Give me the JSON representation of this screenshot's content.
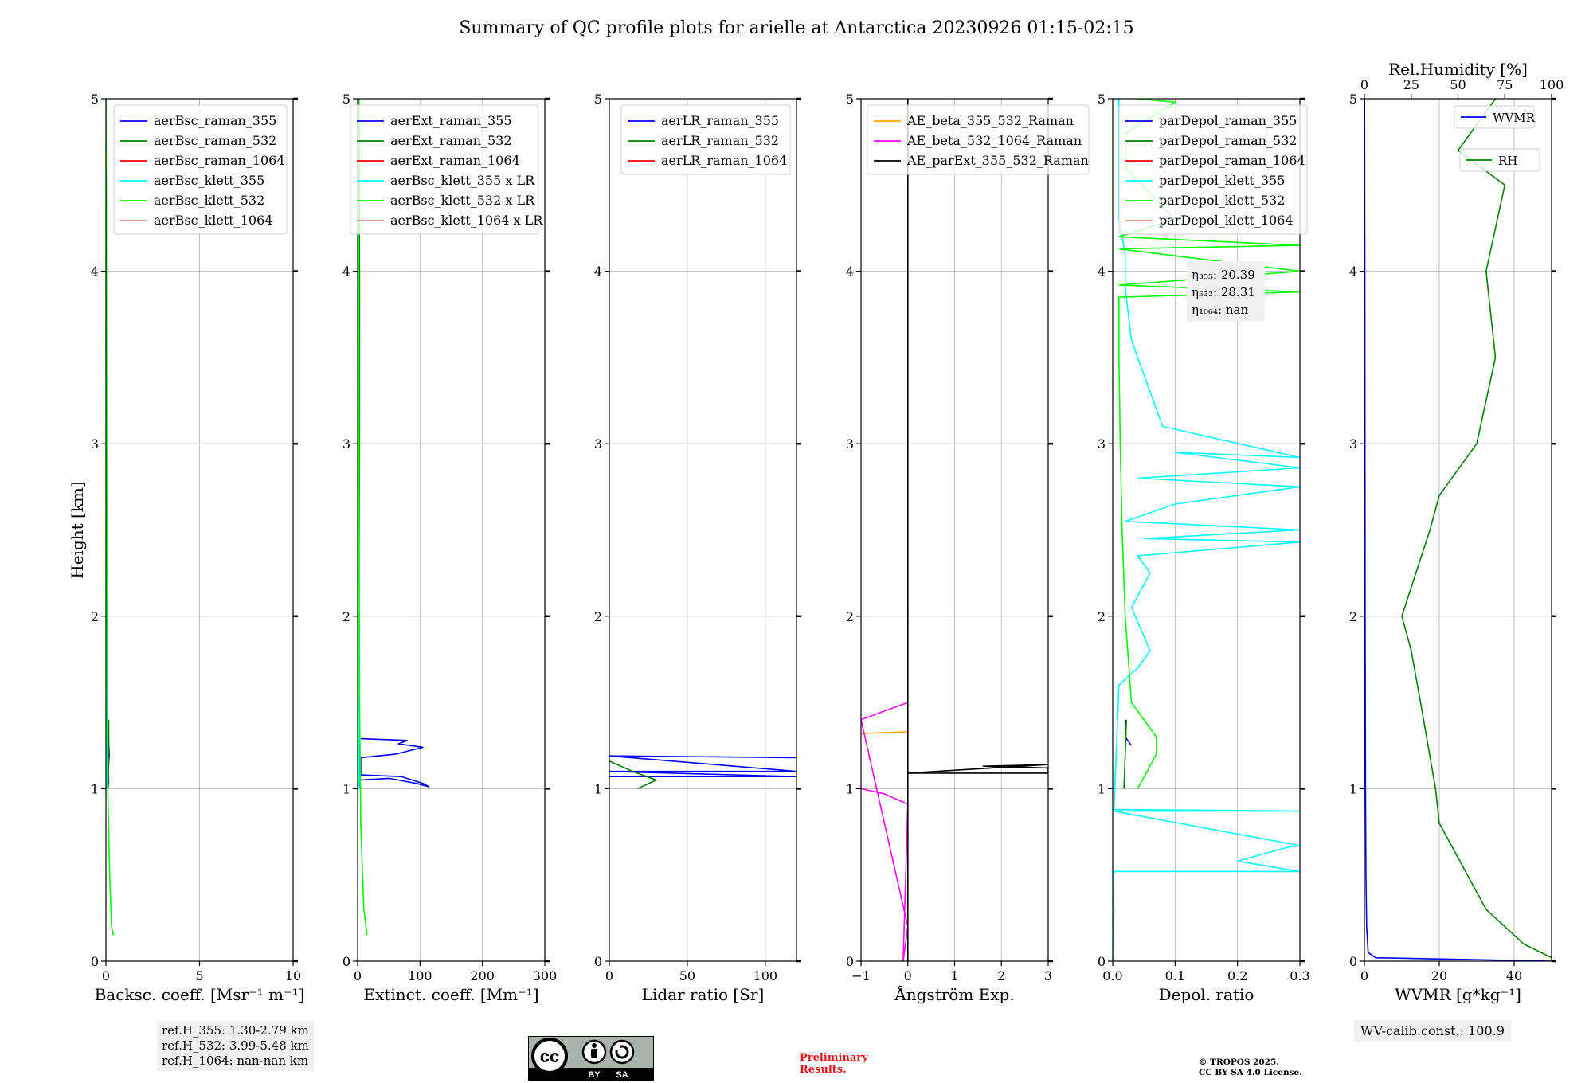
{
  "title": "Summary of QC profile plots for arielle at Antarctica 20230926 01:15-02:15",
  "notes": {
    "ref_heights": [
      "ref.H_355: 1.30-2.79 km",
      "ref.H_532: 3.99-5.48 km",
      "ref.H_1064: nan-nan km"
    ],
    "wv_calib": "WV-calib.const.: 100.9",
    "preliminary": [
      "Preliminary",
      "Results."
    ],
    "copyright": [
      "© TROPOS 2025.",
      "CC BY SA 4.0 License."
    ],
    "license_badge": {
      "symbol": "cc",
      "labels": [
        "BY",
        "SA"
      ]
    }
  },
  "colors": {
    "blue": "#0000ff",
    "green": "#008000",
    "red": "#ff0000",
    "cyan": "#00ffff",
    "lime": "#00ff00",
    "lightcoral": "#f08080",
    "orange": "#ffa500",
    "magenta": "#ff00ff",
    "black": "#000000",
    "prelim_red": "#e31a1c"
  },
  "chart_data": [
    {
      "type": "line",
      "xlabel": "Backsc. coeff. [Msr⁻¹ m⁻¹]",
      "ylabel": "Height [km]",
      "xlim": [
        0,
        10
      ],
      "ylim": [
        0,
        5
      ],
      "xticks": [
        0,
        5,
        10
      ],
      "yticks": [
        0,
        1,
        2,
        3,
        4,
        5
      ],
      "grid": true,
      "legend_position": "upper-right",
      "series": [
        {
          "name": "aerBsc_raman_355",
          "color": "#0000ff",
          "points": [
            [
              0.1,
              1.0
            ],
            [
              0.15,
              1.04
            ],
            [
              0.12,
              1.1
            ],
            [
              0.18,
              1.2
            ],
            [
              0.14,
              1.28
            ],
            [
              0.1,
              1.35
            ]
          ]
        },
        {
          "name": "aerBsc_raman_532",
          "color": "#008000",
          "points": [
            [
              0.12,
              1.0
            ],
            [
              0.15,
              1.2
            ],
            [
              0.15,
              1.4
            ]
          ]
        },
        {
          "name": "aerBsc_raman_1064",
          "color": "#ff0000",
          "points": []
        },
        {
          "name": "aerBsc_klett_355",
          "color": "#00ffff",
          "points": [
            [
              0.05,
              1.0
            ],
            [
              0.05,
              2.0
            ],
            [
              0.03,
              3.0
            ],
            [
              0.02,
              4.0
            ],
            [
              0.0,
              5.0
            ]
          ]
        },
        {
          "name": "aerBsc_klett_532",
          "color": "#00ff00",
          "points": [
            [
              0.4,
              0.15
            ],
            [
              0.3,
              0.2
            ],
            [
              0.2,
              0.5
            ],
            [
              0.1,
              1.0
            ],
            [
              0.08,
              1.5
            ],
            [
              0.05,
              2.5
            ],
            [
              0.04,
              3.5
            ],
            [
              0.02,
              4.5
            ],
            [
              0.0,
              5.0
            ]
          ]
        },
        {
          "name": "aerBsc_klett_1064",
          "color": "#f08080",
          "points": []
        }
      ]
    },
    {
      "type": "line",
      "xlabel": "Extinct. coeff. [Mm⁻¹]",
      "xlim": [
        0,
        300
      ],
      "ylim": [
        0,
        5
      ],
      "xticks": [
        0,
        100,
        200,
        300
      ],
      "yticks": [
        0,
        1,
        2,
        3,
        4,
        5
      ],
      "grid": true,
      "legend_position": "upper-right",
      "series": [
        {
          "name": "aerExt_raman_355",
          "color": "#0000ff",
          "points": [
            [
              5,
              1.0
            ],
            [
              2,
              1.05
            ],
            [
              50,
              1.06
            ],
            [
              95,
              1.03
            ],
            [
              115,
              1.01
            ],
            [
              105,
              1.03
            ],
            [
              70,
              1.07
            ],
            [
              5,
              1.08
            ],
            [
              5,
              1.18
            ],
            [
              60,
              1.2
            ],
            [
              105,
              1.24
            ],
            [
              65,
              1.26
            ],
            [
              80,
              1.28
            ],
            [
              5,
              1.29
            ]
          ]
        },
        {
          "name": "aerExt_raman_532",
          "color": "#008000",
          "points": [
            [
              2,
              1.0
            ],
            [
              2,
              2.0
            ],
            [
              3,
              3.0
            ],
            [
              3,
              4.0
            ],
            [
              2,
              5.0
            ]
          ]
        },
        {
          "name": "aerExt_raman_1064",
          "color": "#ff0000",
          "points": []
        },
        {
          "name": "aerBsc_klett_355 x LR",
          "color": "#00ffff",
          "points": [
            [
              2,
              1.0
            ],
            [
              1,
              2.0
            ],
            [
              1,
              3.0
            ],
            [
              0,
              5.0
            ]
          ]
        },
        {
          "name": "aerBsc_klett_532 x LR",
          "color": "#00ff00",
          "points": [
            [
              15,
              0.15
            ],
            [
              10,
              0.3
            ],
            [
              5,
              0.8
            ],
            [
              3,
              1.5
            ],
            [
              2,
              3.0
            ],
            [
              1,
              5.0
            ]
          ]
        },
        {
          "name": "aerBsc_klett_1064 x LR",
          "color": "#f08080",
          "points": []
        }
      ]
    },
    {
      "type": "line",
      "xlabel": "Lidar ratio [Sr]",
      "xlim": [
        0,
        120
      ],
      "ylim": [
        0,
        5
      ],
      "xticks": [
        0,
        50,
        100
      ],
      "yticks": [
        0,
        1,
        2,
        3,
        4,
        5
      ],
      "grid": true,
      "legend_position": "upper-right",
      "series": [
        {
          "name": "aerLR_raman_355",
          "color": "#0000ff",
          "points": [
            [
              0,
              1.07
            ],
            [
              120,
              1.07
            ],
            [
              0,
              1.1
            ],
            [
              120,
              1.1
            ],
            [
              0,
              1.19
            ],
            [
              120,
              1.18
            ]
          ]
        },
        {
          "name": "aerLR_raman_532",
          "color": "#008000",
          "points": [
            [
              18,
              1.0
            ],
            [
              30,
              1.05
            ],
            [
              15,
              1.1
            ],
            [
              5,
              1.14
            ],
            [
              0,
              1.16
            ]
          ]
        },
        {
          "name": "aerLR_raman_1064",
          "color": "#ff0000",
          "points": []
        }
      ]
    },
    {
      "type": "line",
      "xlabel": "Ångström Exp.",
      "xlim": [
        -1,
        3
      ],
      "ylim": [
        0,
        5
      ],
      "xticks": [
        -1,
        0,
        1,
        2,
        3
      ],
      "yticks": [
        0,
        1,
        2,
        3,
        4,
        5
      ],
      "grid": true,
      "legend_position": "upper-left",
      "series": [
        {
          "name": "AE_beta_355_532_Raman",
          "color": "#ffa500",
          "points": [
            [
              -1,
              1.32
            ],
            [
              0,
              1.33
            ]
          ]
        },
        {
          "name": "AE_beta_532_1064_Raman",
          "color": "#ff00ff",
          "points": [
            [
              -1,
              1.0
            ],
            [
              -0.5,
              0.97
            ],
            [
              0,
              0.91
            ],
            [
              -0.1,
              0.0
            ],
            [
              0,
              0.2
            ],
            [
              -1,
              1.4
            ],
            [
              -0.5,
              1.45
            ],
            [
              0,
              1.5
            ]
          ]
        },
        {
          "name": "AE_parExt_355_532_Raman",
          "color": "#000000",
          "points": [
            [
              0,
              1.32
            ],
            [
              0,
              5.0
            ],
            [
              0,
              1.09
            ],
            [
              3,
              1.09
            ],
            [
              3,
              1.12
            ],
            [
              1.6,
              1.13
            ],
            [
              3,
              1.14
            ],
            [
              0,
              1.09
            ],
            [
              0,
              0.0
            ]
          ]
        }
      ]
    },
    {
      "type": "line",
      "xlabel": "Depol. ratio",
      "xlim": [
        0,
        0.3
      ],
      "ylim": [
        0,
        5
      ],
      "xticks": [
        0.0,
        0.1,
        0.2,
        0.3
      ],
      "yticks": [
        0,
        1,
        2,
        3,
        4,
        5
      ],
      "grid": true,
      "legend_position": "upper-left",
      "annotation": {
        "lines": [
          "η₃₅₅: 20.39",
          "η₅₃₂: 28.31",
          "η₁₀₆₄: nan"
        ]
      },
      "series": [
        {
          "name": "parDepol_raman_355",
          "color": "#0000ff",
          "points": [
            [
              0.02,
              1.4
            ],
            [
              0.02,
              1.3
            ],
            [
              0.03,
              1.25
            ]
          ]
        },
        {
          "name": "parDepol_raman_532",
          "color": "#008000",
          "points": [
            [
              0.018,
              1.0
            ],
            [
              0.02,
              1.2
            ],
            [
              0.022,
              1.4
            ]
          ]
        },
        {
          "name": "parDepol_raman_1064",
          "color": "#ff0000",
          "points": []
        },
        {
          "name": "parDepol_klett_355",
          "color": "#00ffff",
          "points": [
            [
              0.0,
              0.0
            ],
            [
              0.002,
              0.3
            ],
            [
              0.0,
              0.45
            ],
            [
              0.002,
              0.52
            ],
            [
              0.3,
              0.52
            ],
            [
              0.2,
              0.58
            ],
            [
              0.28,
              0.66
            ],
            [
              0.3,
              0.67
            ],
            [
              0.002,
              0.87
            ],
            [
              0.3,
              0.87
            ],
            [
              0.002,
              0.88
            ],
            [
              0.01,
              1.6
            ],
            [
              0.04,
              1.7
            ],
            [
              0.06,
              1.8
            ],
            [
              0.03,
              2.05
            ],
            [
              0.06,
              2.25
            ],
            [
              0.04,
              2.35
            ],
            [
              0.3,
              2.43
            ],
            [
              0.05,
              2.45
            ],
            [
              0.3,
              2.5
            ],
            [
              0.02,
              2.55
            ],
            [
              0.1,
              2.65
            ],
            [
              0.3,
              2.75
            ],
            [
              0.04,
              2.8
            ],
            [
              0.3,
              2.86
            ],
            [
              0.1,
              2.95
            ],
            [
              0.3,
              2.92
            ],
            [
              0.08,
              3.1
            ],
            [
              0.06,
              3.3
            ],
            [
              0.03,
              3.6
            ],
            [
              0.02,
              3.9
            ],
            [
              0.02,
              4.1
            ],
            [
              0.01,
              4.3
            ],
            [
              0.01,
              5.0
            ]
          ]
        },
        {
          "name": "parDepol_klett_532",
          "color": "#00ff00",
          "points": [
            [
              0.04,
              1.0
            ],
            [
              0.07,
              1.2
            ],
            [
              0.07,
              1.3
            ],
            [
              0.03,
              1.5
            ],
            [
              0.02,
              2.0
            ],
            [
              0.015,
              2.5
            ],
            [
              0.012,
              3.0
            ],
            [
              0.01,
              3.5
            ],
            [
              0.01,
              3.85
            ],
            [
              0.3,
              3.88
            ],
            [
              0.01,
              3.92
            ],
            [
              0.3,
              4.0
            ],
            [
              0.01,
              4.13
            ],
            [
              0.3,
              4.15
            ],
            [
              0.01,
              4.2
            ],
            [
              0.1,
              4.3
            ],
            [
              0.02,
              4.6
            ],
            [
              0.02,
              4.8
            ],
            [
              0.1,
              4.98
            ],
            [
              0.04,
              5.0
            ]
          ]
        },
        {
          "name": "parDepol_klett_1064",
          "color": "#f08080",
          "points": []
        }
      ]
    },
    {
      "type": "line",
      "xlabel": "WVMR [g*kg⁻¹]",
      "x2label": "Rel.Humidity [%]",
      "xlim": [
        0,
        50
      ],
      "x2lim": [
        0,
        100
      ],
      "ylim": [
        0,
        5
      ],
      "xticks": [
        0,
        20,
        40
      ],
      "x2ticks": [
        0,
        25,
        50,
        75,
        100
      ],
      "yticks": [
        0,
        1,
        2,
        3,
        4,
        5
      ],
      "grid": true,
      "legend_position": "upper-right",
      "series": [
        {
          "name": "WVMR",
          "color": "#0000ff",
          "axis": "bottom",
          "points": [
            [
              50,
              0.0
            ],
            [
              3,
              0.02
            ],
            [
              1,
              0.05
            ],
            [
              0.6,
              0.2
            ],
            [
              0.4,
              0.5
            ],
            [
              0.3,
              1.0
            ],
            [
              0.2,
              2.0
            ],
            [
              0.15,
              3.0
            ],
            [
              0.1,
              4.0
            ],
            [
              0.05,
              5.0
            ]
          ]
        },
        {
          "name": "RH",
          "color": "#008000",
          "axis": "top",
          "points": [
            [
              100,
              0.02
            ],
            [
              85,
              0.1
            ],
            [
              65,
              0.3
            ],
            [
              50,
              0.6
            ],
            [
              40,
              0.8
            ],
            [
              38,
              1.0
            ],
            [
              30,
              1.5
            ],
            [
              25,
              1.8
            ],
            [
              20,
              2.0
            ],
            [
              35,
              2.5
            ],
            [
              40,
              2.7
            ],
            [
              60,
              3.0
            ],
            [
              70,
              3.5
            ],
            [
              65,
              4.0
            ],
            [
              75,
              4.5
            ],
            [
              50,
              4.7
            ],
            [
              70,
              5.0
            ]
          ]
        }
      ]
    }
  ]
}
